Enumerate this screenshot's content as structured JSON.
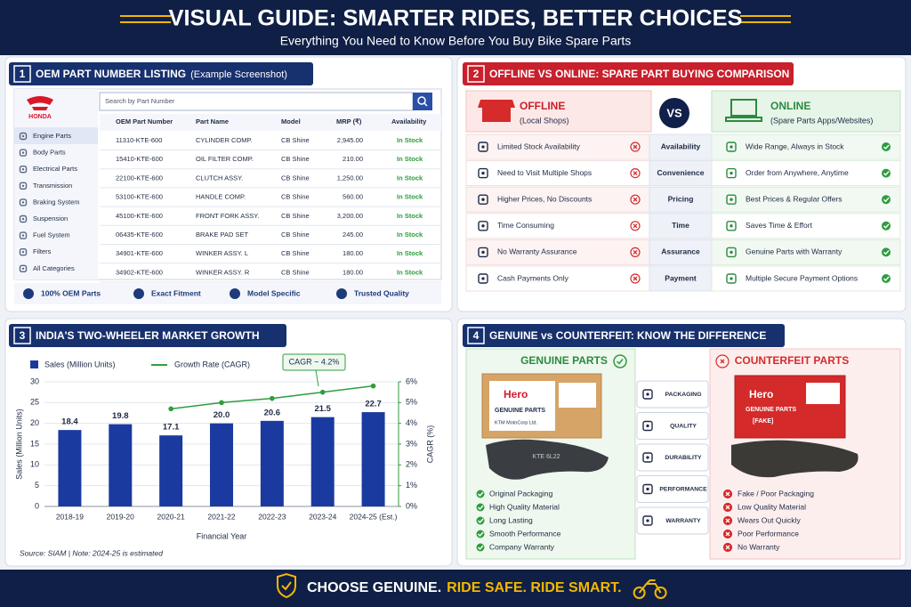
{
  "header": {
    "title": "VISUAL GUIDE: SMARTER RIDES, BETTER CHOICES",
    "subtitle": "Everything You Need to Know Before You Buy Bike Spare Parts"
  },
  "panel1": {
    "number": "1",
    "title": "OEM PART NUMBER LISTING",
    "title_note": "(Example Screenshot)",
    "brand": "HONDA",
    "search_placeholder": "Search by Part Number",
    "sidebar": [
      "Engine Parts",
      "Body Parts",
      "Electrical Parts",
      "Transmission",
      "Braking System",
      "Suspension",
      "Fuel System",
      "Filters",
      "All Categories"
    ],
    "table": {
      "columns": [
        "OEM Part Number",
        "Part Name",
        "Model",
        "MRP (₹)",
        "Availability"
      ],
      "rows": [
        [
          "11310-KTE-600",
          "CYLINDER COMP.",
          "CB Shine",
          "2,945.00",
          "In Stock"
        ],
        [
          "15410-KTE-600",
          "OIL FILTER COMP.",
          "CB Shine",
          "210.00",
          "In Stock"
        ],
        [
          "22100-KTE-600",
          "CLUTCH ASSY.",
          "CB Shine",
          "1,250.00",
          "In Stock"
        ],
        [
          "53100-KTE-600",
          "HANDLE COMP.",
          "CB Shine",
          "560.00",
          "In Stock"
        ],
        [
          "45100-KTE-600",
          "FRONT FORK ASSY.",
          "CB Shine",
          "3,200.00",
          "In Stock"
        ],
        [
          "06435-KTE-600",
          "BRAKE PAD SET",
          "CB Shine",
          "245.00",
          "In Stock"
        ],
        [
          "34901-KTE-600",
          "WINKER ASSY. L",
          "CB Shine",
          "180.00",
          "In Stock"
        ],
        [
          "34902-KTE-600",
          "WINKER ASSY. R",
          "CB Shine",
          "180.00",
          "In Stock"
        ]
      ]
    },
    "badges": [
      "100% OEM Parts",
      "Exact Fitment",
      "Model Specific",
      "Trusted Quality"
    ]
  },
  "panel2": {
    "number": "2",
    "title": "OFFLINE VS ONLINE: SPARE PART BUYING COMPARISON",
    "offline": {
      "title": "OFFLINE",
      "subtitle": "(Local Shops)"
    },
    "vs": "VS",
    "online": {
      "title": "ONLINE",
      "subtitle": "(Spare Parts Apps/Websites)"
    },
    "rows": [
      {
        "offline": "Limited Stock Availability",
        "criterion": "Availability",
        "online": "Wide Range, Always in Stock"
      },
      {
        "offline": "Need to Visit Multiple Shops",
        "criterion": "Convenience",
        "online": "Order from Anywhere, Anytime"
      },
      {
        "offline": "Higher Prices, No Discounts",
        "criterion": "Pricing",
        "online": "Best Prices & Regular Offers"
      },
      {
        "offline": "Time Consuming",
        "criterion": "Time",
        "online": "Saves Time & Effort"
      },
      {
        "offline": "No Warranty Assurance",
        "criterion": "Assurance",
        "online": "Genuine Parts with Warranty"
      },
      {
        "offline": "Cash Payments Only",
        "criterion": "Payment",
        "online": "Multiple Secure Payment Options"
      }
    ]
  },
  "panel3": {
    "number": "3"
  },
  "chart_data": {
    "type": "bar",
    "title": "INDIA'S TWO-WHEELER MARKET GROWTH",
    "categories": [
      "2018-19",
      "2019-20",
      "2020-21",
      "2021-22",
      "2022-23",
      "2023-24",
      "2024-25 (Est.)"
    ],
    "series": [
      {
        "name": "Sales (Million Units)",
        "color": "#1b3aa0",
        "values": [
          18.4,
          19.8,
          17.1,
          20.0,
          20.6,
          21.5,
          22.7
        ],
        "value_labels": [
          "18.4",
          "19.8",
          "17.1",
          "20.0",
          "20.6",
          "21.5",
          "22.7"
        ]
      },
      {
        "name": "Growth Rate (CAGR)",
        "color": "#2e9e3e",
        "type": "line",
        "axis": "y2",
        "values": [
          null,
          null,
          4.7,
          5.0,
          5.2,
          5.5,
          5.8
        ]
      }
    ],
    "xlabel": "Financial Year",
    "ylabel": "Sales (Million Units)",
    "y2label": "CAGR (%)",
    "ylim": [
      0,
      30
    ],
    "yticks": [
      0,
      5,
      10,
      15,
      20,
      25,
      30
    ],
    "y2lim": [
      0,
      6
    ],
    "y2ticks": [
      {
        "value": 0,
        "label": "0%"
      },
      {
        "value": 1,
        "label": "1%"
      },
      {
        "value": 2,
        "label": "2%"
      },
      {
        "value": 3,
        "label": "3%"
      },
      {
        "value": 4,
        "label": "4%"
      },
      {
        "value": 5,
        "label": "5%"
      },
      {
        "value": 6,
        "label": "6%"
      }
    ],
    "grid": true,
    "annotation": "CAGR ~ 4.2%",
    "note": "Source: SIAM  |  Note: 2024-25 is estimated"
  },
  "panel4": {
    "number": "4",
    "title": "GENUINE vs COUNTERFEIT: KNOW THE DIFFERENCE",
    "genuine": {
      "title": "GENUINE PARTS",
      "box_brand": "Hero",
      "box_label": "GENUINE PARTS",
      "box_maker": "KTM MotoCorp Ltd.",
      "pad_marking": "KTE 6L22",
      "points": [
        "Original Packaging",
        "High Quality Material",
        "Long Lasting",
        "Smooth Performance",
        "Company Warranty"
      ]
    },
    "criteria": [
      "PACKAGING",
      "QUALITY",
      "DURABILITY",
      "PERFORMANCE",
      "WARRANTY"
    ],
    "counterfeit": {
      "title": "COUNTERFEIT PARTS",
      "box_brand": "Hero",
      "box_label": "GENUINE PARTS",
      "box_tag": "[FAKE]",
      "points": [
        "Fake / Poor Packaging",
        "Low Quality Material",
        "Wears Out Quickly",
        "Poor Performance",
        "No Warranty"
      ]
    }
  },
  "footer": {
    "lead": "CHOOSE GENUINE.",
    "tagline": "RIDE SAFE. RIDE SMART."
  }
}
